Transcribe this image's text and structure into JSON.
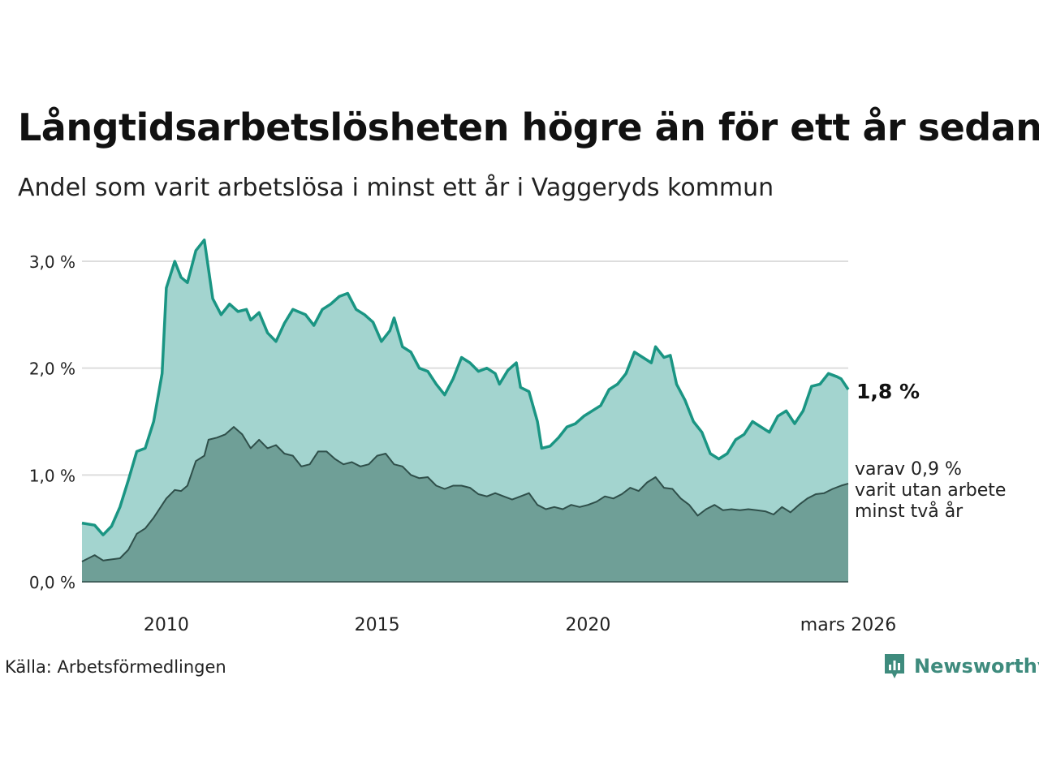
{
  "title": "Långtidsarbetslösheten högre än för ett år sedan",
  "subtitle": "Andel som varit arbetslösa i minst ett år i Vaggeryds kommun",
  "source": "Källa: Arbetsförmedlingen",
  "brand": {
    "name": "Newsworthy",
    "icon": "newsworthy-logo-icon"
  },
  "colors": {
    "main_line": "#1a9583",
    "main_fill": "#a3d4cf",
    "sub_line": "#2f4f4a",
    "sub_fill": "#6f9f97",
    "grid": "#dddddd"
  },
  "chart_data": {
    "type": "area",
    "title": "Långtidsarbetslösheten högre än för ett år sedan",
    "ylim": [
      0,
      3.0
    ],
    "yticks": [
      0,
      1.0,
      2.0,
      3.0
    ],
    "ytick_labels": [
      "0,0 %",
      "1,0 %",
      "2,0 %",
      "3,0 %"
    ],
    "x_start": 2008.0,
    "x_end": 2026.17,
    "xticks": [
      2010,
      2015,
      2020,
      2026.17
    ],
    "xtick_labels": [
      "2010",
      "2015",
      "2020",
      "mars 2026"
    ],
    "end_label_main": "1,8 %",
    "end_label_sub": [
      "varav 0,9 %",
      "varit utan arbete",
      "minst två år"
    ],
    "series": [
      {
        "name": "Arbetslösa minst ett år",
        "points": [
          [
            2008.0,
            0.55
          ],
          [
            2008.3,
            0.53
          ],
          [
            2008.5,
            0.44
          ],
          [
            2008.7,
            0.52
          ],
          [
            2008.9,
            0.7
          ],
          [
            2009.1,
            0.95
          ],
          [
            2009.3,
            1.22
          ],
          [
            2009.5,
            1.25
          ],
          [
            2009.7,
            1.5
          ],
          [
            2009.9,
            1.95
          ],
          [
            2010.0,
            2.75
          ],
          [
            2010.2,
            3.0
          ],
          [
            2010.35,
            2.85
          ],
          [
            2010.5,
            2.8
          ],
          [
            2010.7,
            3.1
          ],
          [
            2010.9,
            3.2
          ],
          [
            2011.1,
            2.65
          ],
          [
            2011.3,
            2.5
          ],
          [
            2011.5,
            2.6
          ],
          [
            2011.7,
            2.53
          ],
          [
            2011.9,
            2.55
          ],
          [
            2012.0,
            2.45
          ],
          [
            2012.2,
            2.52
          ],
          [
            2012.4,
            2.33
          ],
          [
            2012.6,
            2.25
          ],
          [
            2012.8,
            2.42
          ],
          [
            2013.0,
            2.55
          ],
          [
            2013.3,
            2.5
          ],
          [
            2013.5,
            2.4
          ],
          [
            2013.7,
            2.55
          ],
          [
            2013.9,
            2.6
          ],
          [
            2014.1,
            2.67
          ],
          [
            2014.3,
            2.7
          ],
          [
            2014.5,
            2.55
          ],
          [
            2014.7,
            2.5
          ],
          [
            2014.9,
            2.43
          ],
          [
            2015.1,
            2.25
          ],
          [
            2015.3,
            2.35
          ],
          [
            2015.4,
            2.47
          ],
          [
            2015.6,
            2.2
          ],
          [
            2015.8,
            2.15
          ],
          [
            2016.0,
            2.0
          ],
          [
            2016.2,
            1.97
          ],
          [
            2016.4,
            1.85
          ],
          [
            2016.6,
            1.75
          ],
          [
            2016.8,
            1.9
          ],
          [
            2017.0,
            2.1
          ],
          [
            2017.2,
            2.05
          ],
          [
            2017.4,
            1.97
          ],
          [
            2017.6,
            2.0
          ],
          [
            2017.8,
            1.95
          ],
          [
            2017.9,
            1.85
          ],
          [
            2018.1,
            1.98
          ],
          [
            2018.3,
            2.05
          ],
          [
            2018.4,
            1.82
          ],
          [
            2018.6,
            1.78
          ],
          [
            2018.8,
            1.5
          ],
          [
            2018.9,
            1.25
          ],
          [
            2019.1,
            1.27
          ],
          [
            2019.3,
            1.35
          ],
          [
            2019.5,
            1.45
          ],
          [
            2019.7,
            1.48
          ],
          [
            2019.9,
            1.55
          ],
          [
            2020.1,
            1.6
          ],
          [
            2020.3,
            1.65
          ],
          [
            2020.5,
            1.8
          ],
          [
            2020.7,
            1.85
          ],
          [
            2020.9,
            1.95
          ],
          [
            2021.1,
            2.15
          ],
          [
            2021.3,
            2.1
          ],
          [
            2021.5,
            2.05
          ],
          [
            2021.6,
            2.2
          ],
          [
            2021.8,
            2.1
          ],
          [
            2021.95,
            2.12
          ],
          [
            2022.1,
            1.85
          ],
          [
            2022.3,
            1.7
          ],
          [
            2022.5,
            1.5
          ],
          [
            2022.7,
            1.4
          ],
          [
            2022.9,
            1.2
          ],
          [
            2023.1,
            1.15
          ],
          [
            2023.3,
            1.2
          ],
          [
            2023.5,
            1.33
          ],
          [
            2023.7,
            1.38
          ],
          [
            2023.9,
            1.5
          ],
          [
            2024.1,
            1.45
          ],
          [
            2024.3,
            1.4
          ],
          [
            2024.5,
            1.55
          ],
          [
            2024.7,
            1.6
          ],
          [
            2024.9,
            1.48
          ],
          [
            2025.1,
            1.6
          ],
          [
            2025.3,
            1.83
          ],
          [
            2025.5,
            1.85
          ],
          [
            2025.7,
            1.95
          ],
          [
            2025.9,
            1.92
          ],
          [
            2026.0,
            1.9
          ],
          [
            2026.17,
            1.8
          ]
        ]
      },
      {
        "name": "varav utan arbete minst två år",
        "points": [
          [
            2008.0,
            0.19
          ],
          [
            2008.3,
            0.25
          ],
          [
            2008.5,
            0.2
          ],
          [
            2008.7,
            0.21
          ],
          [
            2008.9,
            0.22
          ],
          [
            2009.1,
            0.3
          ],
          [
            2009.3,
            0.45
          ],
          [
            2009.5,
            0.5
          ],
          [
            2009.7,
            0.6
          ],
          [
            2009.9,
            0.72
          ],
          [
            2010.0,
            0.78
          ],
          [
            2010.2,
            0.86
          ],
          [
            2010.35,
            0.85
          ],
          [
            2010.5,
            0.9
          ],
          [
            2010.7,
            1.13
          ],
          [
            2010.9,
            1.18
          ],
          [
            2011.0,
            1.33
          ],
          [
            2011.2,
            1.35
          ],
          [
            2011.4,
            1.38
          ],
          [
            2011.6,
            1.45
          ],
          [
            2011.8,
            1.38
          ],
          [
            2012.0,
            1.25
          ],
          [
            2012.2,
            1.33
          ],
          [
            2012.4,
            1.25
          ],
          [
            2012.6,
            1.28
          ],
          [
            2012.8,
            1.2
          ],
          [
            2013.0,
            1.18
          ],
          [
            2013.2,
            1.08
          ],
          [
            2013.4,
            1.1
          ],
          [
            2013.6,
            1.22
          ],
          [
            2013.8,
            1.22
          ],
          [
            2014.0,
            1.15
          ],
          [
            2014.2,
            1.1
          ],
          [
            2014.4,
            1.12
          ],
          [
            2014.6,
            1.08
          ],
          [
            2014.8,
            1.1
          ],
          [
            2015.0,
            1.18
          ],
          [
            2015.2,
            1.2
          ],
          [
            2015.4,
            1.1
          ],
          [
            2015.6,
            1.08
          ],
          [
            2015.8,
            1.0
          ],
          [
            2016.0,
            0.97
          ],
          [
            2016.2,
            0.98
          ],
          [
            2016.4,
            0.9
          ],
          [
            2016.6,
            0.87
          ],
          [
            2016.8,
            0.9
          ],
          [
            2017.0,
            0.9
          ],
          [
            2017.2,
            0.88
          ],
          [
            2017.4,
            0.82
          ],
          [
            2017.6,
            0.8
          ],
          [
            2017.8,
            0.83
          ],
          [
            2018.0,
            0.8
          ],
          [
            2018.2,
            0.77
          ],
          [
            2018.4,
            0.8
          ],
          [
            2018.6,
            0.83
          ],
          [
            2018.8,
            0.72
          ],
          [
            2019.0,
            0.68
          ],
          [
            2019.2,
            0.7
          ],
          [
            2019.4,
            0.68
          ],
          [
            2019.6,
            0.72
          ],
          [
            2019.8,
            0.7
          ],
          [
            2020.0,
            0.72
          ],
          [
            2020.2,
            0.75
          ],
          [
            2020.4,
            0.8
          ],
          [
            2020.6,
            0.78
          ],
          [
            2020.8,
            0.82
          ],
          [
            2021.0,
            0.88
          ],
          [
            2021.2,
            0.85
          ],
          [
            2021.4,
            0.93
          ],
          [
            2021.6,
            0.98
          ],
          [
            2021.8,
            0.88
          ],
          [
            2022.0,
            0.87
          ],
          [
            2022.2,
            0.78
          ],
          [
            2022.4,
            0.72
          ],
          [
            2022.6,
            0.62
          ],
          [
            2022.8,
            0.68
          ],
          [
            2023.0,
            0.72
          ],
          [
            2023.2,
            0.67
          ],
          [
            2023.4,
            0.68
          ],
          [
            2023.6,
            0.67
          ],
          [
            2023.8,
            0.68
          ],
          [
            2024.0,
            0.67
          ],
          [
            2024.2,
            0.66
          ],
          [
            2024.4,
            0.63
          ],
          [
            2024.6,
            0.7
          ],
          [
            2024.8,
            0.65
          ],
          [
            2025.0,
            0.72
          ],
          [
            2025.2,
            0.78
          ],
          [
            2025.4,
            0.82
          ],
          [
            2025.6,
            0.83
          ],
          [
            2025.8,
            0.87
          ],
          [
            2026.0,
            0.9
          ],
          [
            2026.17,
            0.92
          ]
        ]
      }
    ]
  }
}
